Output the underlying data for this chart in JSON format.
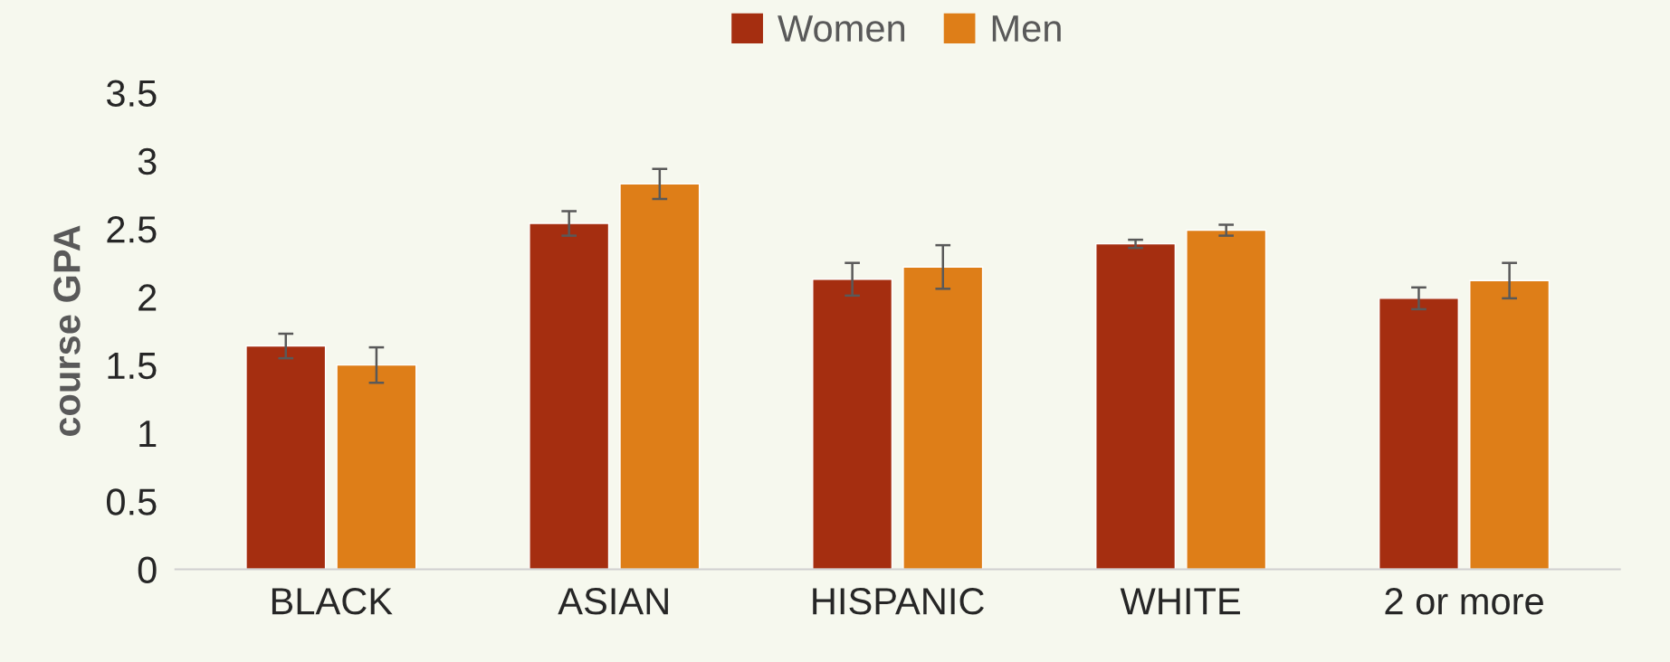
{
  "chart_data": {
    "type": "bar",
    "ylabel": "course GPA",
    "categories": [
      "BLACK",
      "ASIAN",
      "HISPANIC",
      "WHITE",
      "2 or more"
    ],
    "series": [
      {
        "name": "Women",
        "color": "#a52e10",
        "values": [
          1.64,
          2.54,
          2.13,
          2.39,
          1.99
        ],
        "errors": [
          0.09,
          0.09,
          0.12,
          0.03,
          0.08
        ]
      },
      {
        "name": "Men",
        "color": "#de7e18",
        "values": [
          1.5,
          2.83,
          2.22,
          2.49,
          2.12
        ],
        "errors": [
          0.13,
          0.11,
          0.16,
          0.04,
          0.13
        ]
      }
    ],
    "ylim": [
      0,
      3.5
    ],
    "yticks": [
      0,
      0.5,
      1,
      1.5,
      2,
      2.5,
      3,
      3.5
    ],
    "grid": false,
    "legend": "top"
  }
}
